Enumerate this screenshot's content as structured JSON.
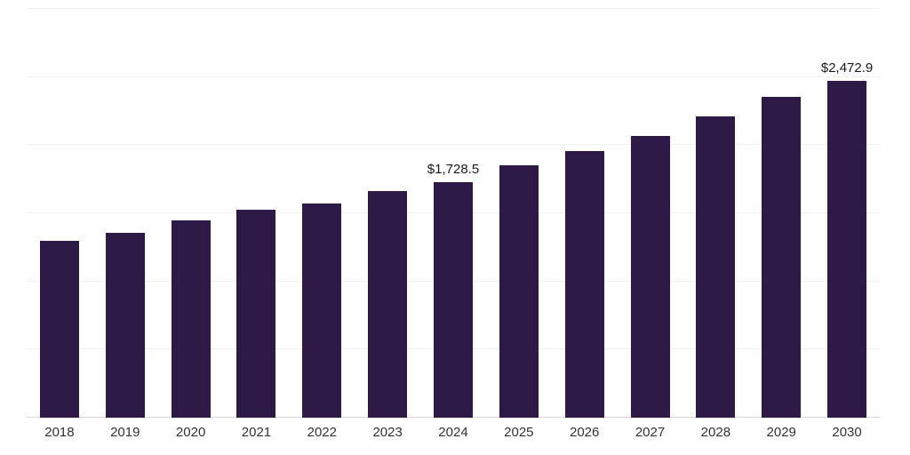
{
  "chart_data": {
    "type": "bar",
    "title": "",
    "xlabel": "",
    "ylabel": "",
    "categories": [
      "2018",
      "2019",
      "2020",
      "2021",
      "2022",
      "2023",
      "2024",
      "2025",
      "2026",
      "2027",
      "2028",
      "2029",
      "2030"
    ],
    "values": [
      1300,
      1355,
      1445,
      1525,
      1575,
      1665,
      1728.5,
      1850,
      1955,
      2070,
      2210,
      2355,
      2472.9
    ],
    "annotations": [
      {
        "category": "2024",
        "text": "$1,728.5"
      },
      {
        "category": "2030",
        "text": "$2,472.9"
      }
    ],
    "ylim": [
      0,
      3000
    ],
    "gridline_step": 500,
    "grid": "on",
    "legend": "none",
    "bar_color": "#2e1a47",
    "gridline_color": "#f2f2f2",
    "baseline_color": "#d9d9d9",
    "tick_label_color": "#333333",
    "annotation_color": "#1a1a1a"
  }
}
